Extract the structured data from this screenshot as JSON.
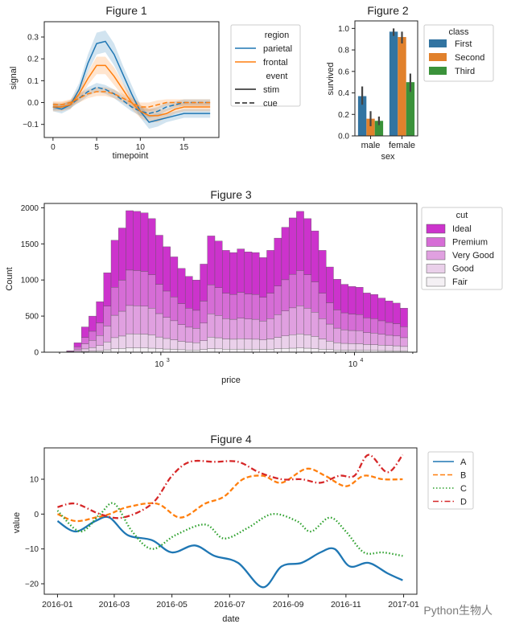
{
  "colors": {
    "blue": "#1f77b4",
    "orange": "#ff7f0e",
    "green": "#2ca02c",
    "red": "#d62728",
    "bar_first": "#3274a1",
    "bar_second": "#e1812c",
    "bar_third": "#3a923a",
    "cut_colors": [
      "#cc33cc",
      "#d66dd6",
      "#e0a0e0",
      "#ead0ea",
      "#f4f0f4"
    ],
    "frame": "#222222",
    "errbar": "#444444"
  },
  "watermark": "Python生物人",
  "chart_data": [
    {
      "id": "fig1",
      "type": "line",
      "title": "Figure 1",
      "xlabel": "timepoint",
      "ylabel": "signal",
      "xlim": [
        -1,
        19
      ],
      "ylim": [
        -0.16,
        0.37
      ],
      "xticks": [
        0,
        5,
        10,
        15
      ],
      "xtick_labels": [
        "0",
        "5",
        "10",
        "15"
      ],
      "yticks": [
        -0.1,
        0.0,
        0.1,
        0.2,
        0.3
      ],
      "ytick_labels": [
        "−0.1",
        "0.0",
        "0.1",
        "0.2",
        "0.3"
      ],
      "x": [
        0,
        1,
        2,
        3,
        4,
        5,
        6,
        7,
        8,
        9,
        10,
        11,
        12,
        13,
        14,
        15,
        16,
        17,
        18
      ],
      "series": [
        {
          "region": "parietal",
          "event": "stim",
          "color": "blue",
          "dash": "solid",
          "values": [
            -0.02,
            -0.03,
            -0.01,
            0.06,
            0.18,
            0.27,
            0.28,
            0.22,
            0.13,
            0.04,
            -0.04,
            -0.09,
            -0.08,
            -0.07,
            -0.06,
            -0.05,
            -0.05,
            -0.05,
            -0.05
          ],
          "band": [
            0.02,
            0.02,
            0.02,
            0.03,
            0.04,
            0.05,
            0.05,
            0.05,
            0.04,
            0.04,
            0.03,
            0.03,
            0.03,
            0.02,
            0.02,
            0.02,
            0.02,
            0.02,
            0.02
          ]
        },
        {
          "region": "parietal",
          "event": "cue",
          "color": "blue",
          "dash": "dashed",
          "values": [
            -0.02,
            -0.02,
            -0.01,
            0.02,
            0.05,
            0.07,
            0.06,
            0.04,
            0.01,
            -0.02,
            -0.04,
            -0.05,
            -0.04,
            -0.02,
            -0.01,
            0.0,
            0.0,
            0.0,
            0.0
          ],
          "band": [
            0.015,
            0.015,
            0.015,
            0.02,
            0.02,
            0.02,
            0.02,
            0.02,
            0.02,
            0.02,
            0.02,
            0.02,
            0.02,
            0.02,
            0.015,
            0.015,
            0.015,
            0.015,
            0.015
          ]
        },
        {
          "region": "frontal",
          "event": "stim",
          "color": "orange",
          "dash": "solid",
          "values": [
            -0.02,
            -0.02,
            -0.01,
            0.04,
            0.11,
            0.17,
            0.17,
            0.12,
            0.06,
            0.0,
            -0.04,
            -0.06,
            -0.06,
            -0.05,
            -0.03,
            -0.02,
            -0.02,
            -0.02,
            -0.02
          ],
          "band": [
            0.02,
            0.02,
            0.02,
            0.03,
            0.03,
            0.04,
            0.04,
            0.04,
            0.03,
            0.03,
            0.03,
            0.03,
            0.03,
            0.02,
            0.02,
            0.02,
            0.02,
            0.02,
            0.02
          ]
        },
        {
          "region": "frontal",
          "event": "cue",
          "color": "orange",
          "dash": "dashed",
          "values": [
            -0.01,
            -0.01,
            0.0,
            0.02,
            0.04,
            0.05,
            0.05,
            0.04,
            0.02,
            0.0,
            -0.02,
            -0.02,
            -0.01,
            0.0,
            0.0,
            0.0,
            0.0,
            0.0,
            0.0
          ],
          "band": [
            0.015,
            0.015,
            0.015,
            0.02,
            0.02,
            0.02,
            0.02,
            0.02,
            0.02,
            0.02,
            0.02,
            0.02,
            0.02,
            0.015,
            0.015,
            0.015,
            0.015,
            0.015,
            0.015
          ]
        }
      ],
      "legend": {
        "placement": "outside right",
        "entries": [
          {
            "label": "region",
            "kind": "header"
          },
          {
            "label": "parietal",
            "kind": "line",
            "color": "blue",
            "dash": "solid"
          },
          {
            "label": "frontal",
            "kind": "line",
            "color": "orange",
            "dash": "solid"
          },
          {
            "label": "event",
            "kind": "header"
          },
          {
            "label": "stim",
            "kind": "line",
            "color": "frame",
            "dash": "solid"
          },
          {
            "label": "cue",
            "kind": "line",
            "color": "frame",
            "dash": "dashed"
          }
        ]
      }
    },
    {
      "id": "fig2",
      "type": "bar",
      "title": "Figure 2",
      "xlabel": "sex",
      "ylabel": "survived",
      "ylim": [
        0,
        1.07
      ],
      "yticks": [
        0.0,
        0.2,
        0.4,
        0.6,
        0.8,
        1.0
      ],
      "ytick_labels": [
        "0.0",
        "0.2",
        "0.4",
        "0.6",
        "0.8",
        "1.0"
      ],
      "categories": [
        "male",
        "female"
      ],
      "series": [
        {
          "name": "First",
          "color": "bar_first",
          "values": [
            0.37,
            0.97
          ],
          "err_low": [
            0.29,
            0.93
          ],
          "err_high": [
            0.46,
            1.0
          ]
        },
        {
          "name": "Second",
          "color": "bar_second",
          "values": [
            0.16,
            0.92
          ],
          "err_low": [
            0.09,
            0.86
          ],
          "err_high": [
            0.23,
            0.97
          ]
        },
        {
          "name": "Third",
          "color": "bar_third",
          "values": [
            0.14,
            0.5
          ],
          "err_low": [
            0.1,
            0.41
          ],
          "err_high": [
            0.18,
            0.58
          ]
        }
      ],
      "legend": {
        "title": "class",
        "placement": "outside right"
      }
    },
    {
      "id": "fig3",
      "type": "bar",
      "stacked": true,
      "log_x": true,
      "title": "Figure 3",
      "xlabel": "price",
      "ylabel": "Count",
      "xlim": [
        250,
        21000
      ],
      "ylim": [
        0,
        2060
      ],
      "xticks": [
        1000,
        10000
      ],
      "xtick_labels": [
        "10",
        "10"
      ],
      "xtick_exponents": [
        "3",
        "4"
      ],
      "yticks": [
        0,
        500,
        1000,
        1500,
        2000
      ],
      "ytick_labels": [
        "0",
        "500",
        "1000",
        "1500",
        "2000"
      ],
      "bin_range": [
        326,
        18823
      ],
      "totals": [
        20,
        130,
        350,
        500,
        700,
        1100,
        1550,
        1720,
        1960,
        1950,
        1930,
        1850,
        1620,
        1460,
        1320,
        1160,
        1050,
        1000,
        1220,
        1610,
        1540,
        1410,
        1380,
        1430,
        1390,
        1380,
        1310,
        1410,
        1580,
        1730,
        1860,
        1950,
        1850,
        1680,
        1410,
        1180,
        1010,
        940,
        910,
        900,
        820,
        800,
        750,
        710,
        680,
        610
      ],
      "series": [
        {
          "name": "Ideal",
          "color_index": 0,
          "share": 0.42
        },
        {
          "name": "Premium",
          "color_index": 1,
          "share": 0.25
        },
        {
          "name": "Very Good",
          "color_index": 2,
          "share": 0.2
        },
        {
          "name": "Good",
          "color_index": 3,
          "share": 0.1
        },
        {
          "name": "Fair",
          "color_index": 4,
          "share": 0.03
        }
      ],
      "legend": {
        "title": "cut",
        "placement": "outside right"
      }
    },
    {
      "id": "fig4",
      "type": "line",
      "title": "Figure 4",
      "xlabel": "date",
      "ylabel": "value",
      "x_dates": true,
      "x_start": "2016-01-01",
      "x_end": "2016-12-31",
      "ylim": [
        -23,
        19
      ],
      "yticks": [
        -20,
        -10,
        0,
        10
      ],
      "ytick_labels": [
        "−20",
        "−10",
        "0",
        "10"
      ],
      "xtick_labels": [
        "2016-01",
        "2016-03",
        "2016-05",
        "2016-07",
        "2016-09",
        "2016-11",
        "2017-01"
      ],
      "xtick_dates": [
        "2016-01-01",
        "2016-03-01",
        "2016-05-01",
        "2016-07-01",
        "2016-09-01",
        "2016-11-01",
        "2017-01-01"
      ],
      "series": [
        {
          "name": "A",
          "color": "blue",
          "dash": "solid",
          "points": [
            [
              "2016-01-01",
              -2
            ],
            [
              "2016-01-20",
              -5
            ],
            [
              "2016-02-10",
              -2
            ],
            [
              "2016-02-25",
              -1
            ],
            [
              "2016-03-15",
              -6
            ],
            [
              "2016-04-10",
              -7.5
            ],
            [
              "2016-05-01",
              -11
            ],
            [
              "2016-05-25",
              -9
            ],
            [
              "2016-06-15",
              -12
            ],
            [
              "2016-07-10",
              -14
            ],
            [
              "2016-08-05",
              -21
            ],
            [
              "2016-08-25",
              -15
            ],
            [
              "2016-09-15",
              -14
            ],
            [
              "2016-10-05",
              -11
            ],
            [
              "2016-10-20",
              -10
            ],
            [
              "2016-11-05",
              -15
            ],
            [
              "2016-11-25",
              -14
            ],
            [
              "2016-12-15",
              -17
            ],
            [
              "2016-12-31",
              -19
            ]
          ]
        },
        {
          "name": "B",
          "color": "orange",
          "dash": "dashed",
          "points": [
            [
              "2016-01-01",
              0
            ],
            [
              "2016-01-20",
              -2
            ],
            [
              "2016-02-10",
              -1
            ],
            [
              "2016-02-25",
              0
            ],
            [
              "2016-03-15",
              2
            ],
            [
              "2016-04-15",
              3
            ],
            [
              "2016-05-10",
              -1
            ],
            [
              "2016-06-05",
              3
            ],
            [
              "2016-06-25",
              5
            ],
            [
              "2016-07-15",
              10
            ],
            [
              "2016-08-05",
              11
            ],
            [
              "2016-08-25",
              9
            ],
            [
              "2016-09-20",
              13
            ],
            [
              "2016-10-10",
              11
            ],
            [
              "2016-11-01",
              8
            ],
            [
              "2016-11-20",
              11
            ],
            [
              "2016-12-10",
              10
            ],
            [
              "2016-12-31",
              10
            ]
          ]
        },
        {
          "name": "C",
          "color": "green",
          "dash": "dotted",
          "points": [
            [
              "2016-01-01",
              1
            ],
            [
              "2016-01-25",
              -5
            ],
            [
              "2016-02-15",
              0
            ],
            [
              "2016-03-01",
              3
            ],
            [
              "2016-03-20",
              -5
            ],
            [
              "2016-04-10",
              -10
            ],
            [
              "2016-05-05",
              -6
            ],
            [
              "2016-06-05",
              -3
            ],
            [
              "2016-06-25",
              -7
            ],
            [
              "2016-07-20",
              -4
            ],
            [
              "2016-08-15",
              0
            ],
            [
              "2016-09-10",
              -2
            ],
            [
              "2016-09-25",
              -5
            ],
            [
              "2016-10-15",
              -1
            ],
            [
              "2016-11-01",
              -5
            ],
            [
              "2016-11-20",
              -11
            ],
            [
              "2016-12-10",
              -11
            ],
            [
              "2016-12-31",
              -12
            ]
          ]
        },
        {
          "name": "D",
          "color": "red",
          "dash": "dashdot",
          "points": [
            [
              "2016-01-01",
              2
            ],
            [
              "2016-01-20",
              3
            ],
            [
              "2016-02-15",
              0
            ],
            [
              "2016-03-10",
              -1
            ],
            [
              "2016-04-10",
              3
            ],
            [
              "2016-05-01",
              11
            ],
            [
              "2016-05-20",
              15
            ],
            [
              "2016-06-15",
              15
            ],
            [
              "2016-07-10",
              15
            ],
            [
              "2016-08-01",
              12
            ],
            [
              "2016-08-25",
              10
            ],
            [
              "2016-09-15",
              10
            ],
            [
              "2016-10-05",
              9
            ],
            [
              "2016-10-25",
              11
            ],
            [
              "2016-11-10",
              11
            ],
            [
              "2016-11-25",
              17
            ],
            [
              "2016-12-15",
              12
            ],
            [
              "2016-12-31",
              17
            ]
          ]
        }
      ],
      "legend": {
        "placement": "outside right"
      }
    }
  ]
}
